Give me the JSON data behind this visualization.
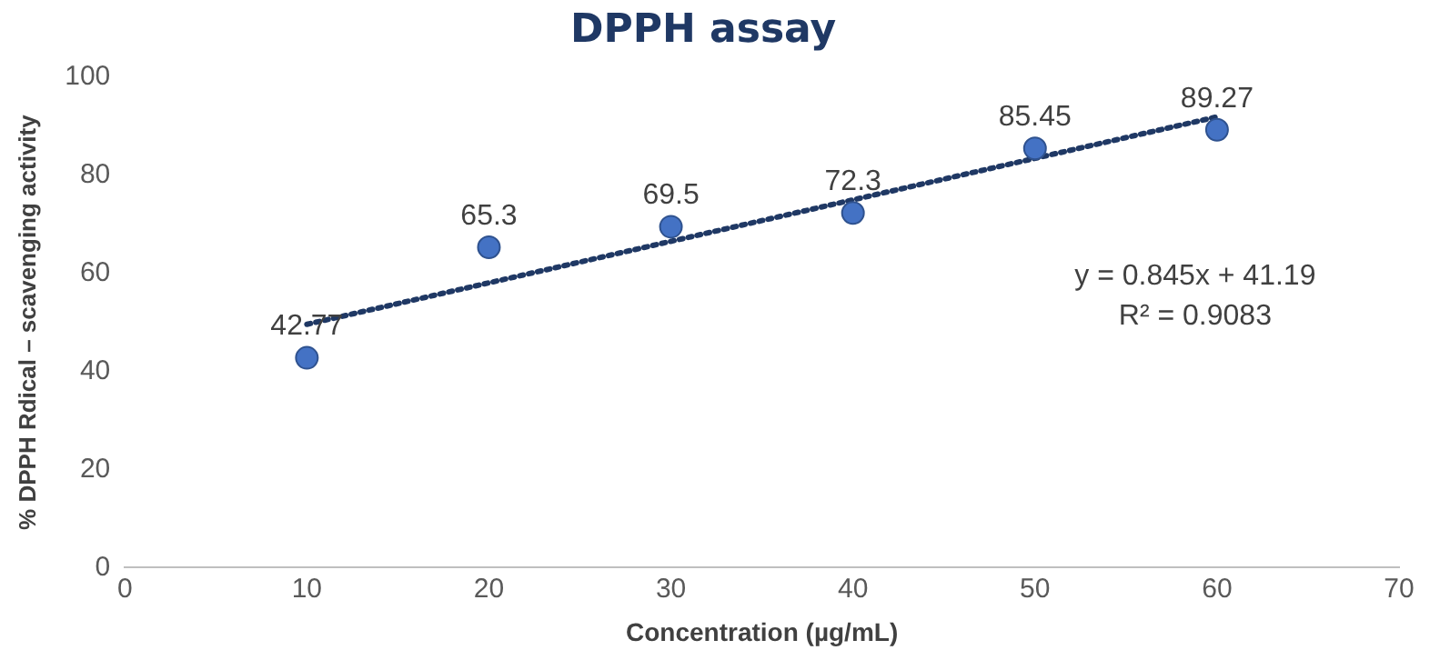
{
  "chart_data": {
    "type": "scatter",
    "title": "DPPH assay",
    "xlabel": "Concentration (µg/mL)",
    "ylabel": "% DPPH Rdical – scavenging activity",
    "x": [
      10,
      20,
      30,
      40,
      50,
      60
    ],
    "series": [
      {
        "color": "#4472c4",
        "values": [
          42.77,
          65.3,
          69.5,
          72.3,
          85.45,
          89.27
        ],
        "value_labels": [
          "42.77",
          "65.3",
          "69.5",
          "72.3",
          "85.45",
          "89.27"
        ],
        "marker": "circle"
      },
      {
        "type": "line",
        "color": "#1f3864",
        "x": [
          10,
          60
        ],
        "values": [
          49.6,
          91.9
        ],
        "line_style": "dotted",
        "marker": "none"
      }
    ],
    "annotations": [
      "y = 0.845x + 41.19",
      "R² = 0.9083"
    ],
    "xlim": [
      0,
      70
    ],
    "xticks": [
      0,
      10,
      20,
      30,
      40,
      50,
      60,
      70
    ],
    "ylim": [
      0,
      100
    ],
    "yticks": [
      0,
      20,
      40,
      60,
      80,
      100
    ],
    "grid": false,
    "legend": false
  }
}
